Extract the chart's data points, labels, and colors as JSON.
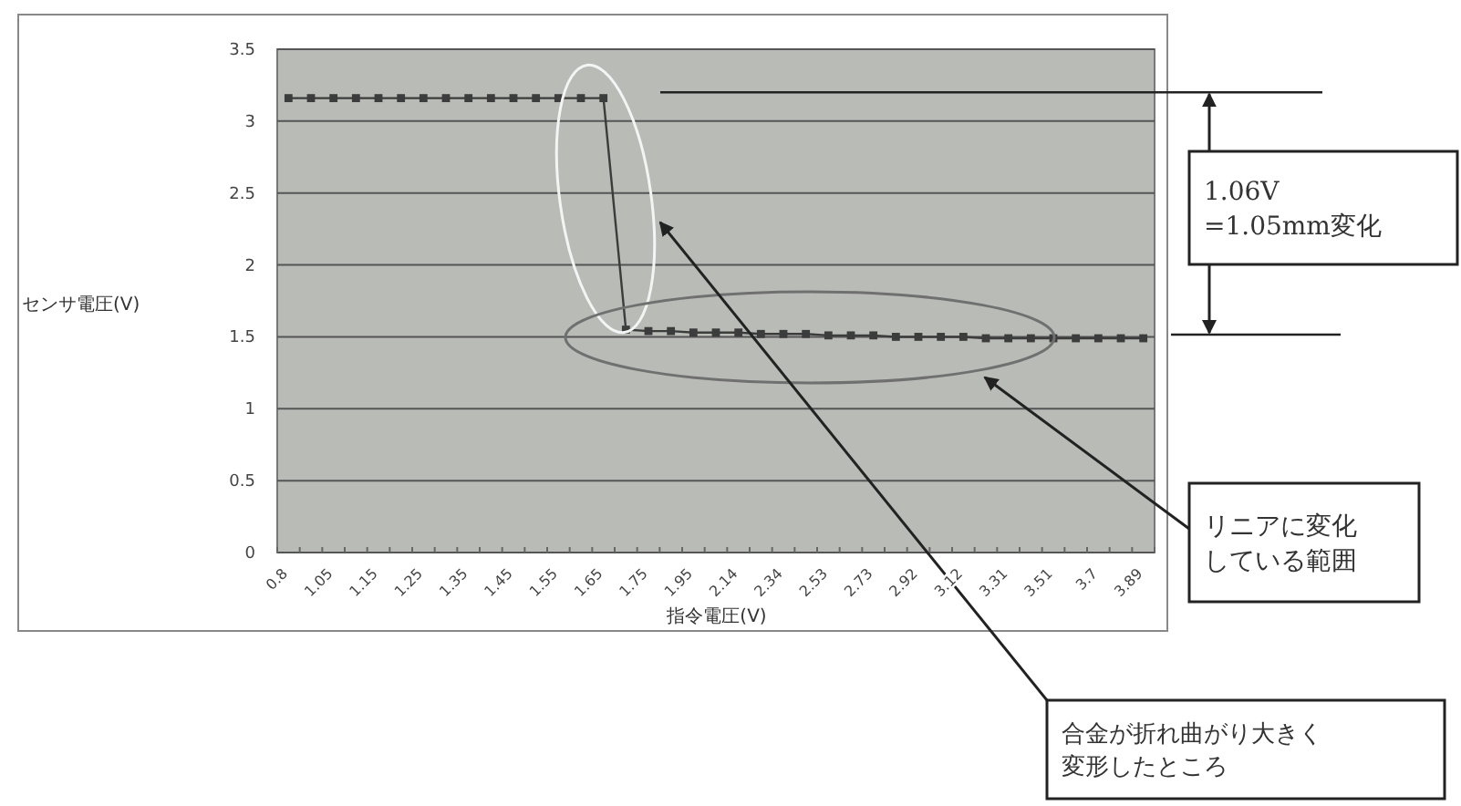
{
  "chart_data": {
    "type": "line",
    "xlabel": "指令電圧(V)",
    "ylabel": "センサ電圧(V)",
    "categories": [
      "0.8",
      null,
      "1.05",
      null,
      "1.15",
      null,
      "1.25",
      null,
      "1.35",
      null,
      "1.45",
      null,
      "1.55",
      null,
      "1.65",
      null,
      "1.75",
      null,
      "1.95",
      null,
      "2.14",
      null,
      "2.34",
      null,
      "2.53",
      null,
      "2.73",
      null,
      "2.92",
      null,
      "3.12",
      null,
      "3.31",
      null,
      "3.51",
      null,
      "3.7",
      null,
      "3.89"
    ],
    "series": [
      {
        "color": "#3c3c3c",
        "values": [
          3.16,
          3.16,
          3.16,
          3.16,
          3.16,
          3.16,
          3.16,
          3.16,
          3.16,
          3.16,
          3.16,
          3.16,
          3.16,
          3.16,
          3.16,
          1.55,
          1.54,
          1.54,
          1.53,
          1.53,
          1.53,
          1.52,
          1.52,
          1.52,
          1.51,
          1.51,
          1.51,
          1.5,
          1.5,
          1.5,
          1.5,
          1.49,
          1.49,
          1.49,
          1.49,
          1.49,
          1.49,
          1.49,
          1.49
        ]
      }
    ],
    "ylim": [
      0,
      3.5
    ],
    "yticks": [
      0,
      0.5,
      1,
      1.5,
      2,
      2.5,
      3,
      3.5
    ],
    "grid": "y",
    "marker": "square",
    "ref_lines": [
      {
        "axis": "y",
        "value": 3.2
      }
    ],
    "annotations": [
      "1.06V\n=1.05mm変化",
      "リニアに変化している範囲",
      "合金が折れ曲がり大きく変形したところ"
    ]
  }
}
